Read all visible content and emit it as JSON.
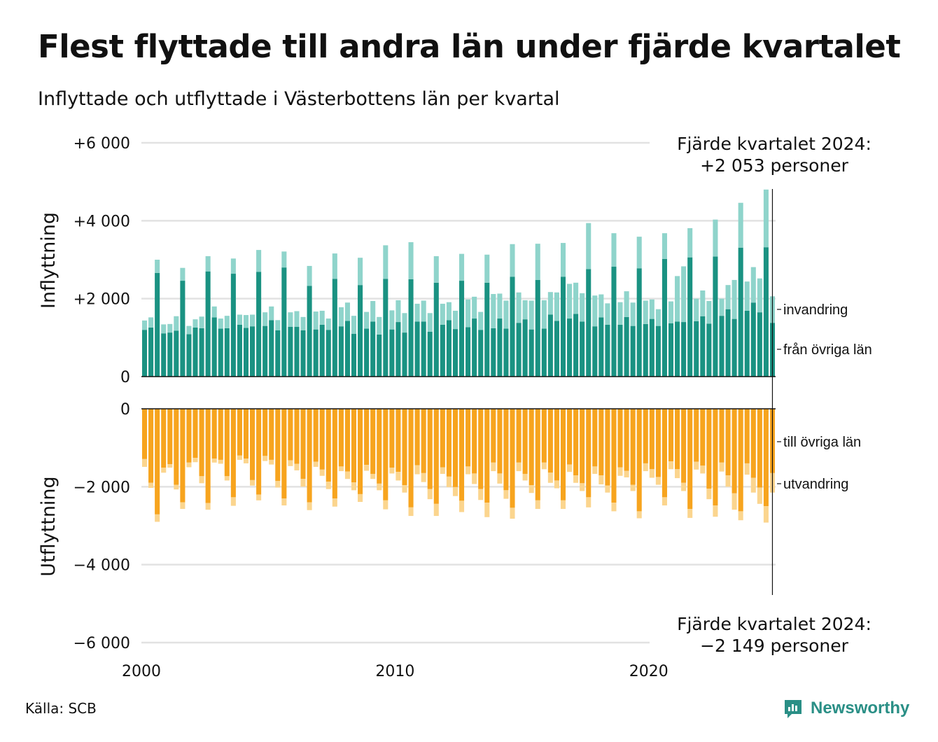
{
  "title": "Flest flyttade till andra län under fjärde kvartalet",
  "subtitle": "Inflyttade och utflyttade i Västerbottens län per kvartal",
  "source": "Källa: SCB",
  "brand": {
    "name": "Newsworthy",
    "color": "#2a8f86",
    "icon": "bar-chart-speech-bubble-icon"
  },
  "colors": {
    "in_domestic": "#1a9282",
    "in_immigration": "#8fd4cb",
    "out_domestic": "#f7a41e",
    "out_emigration": "#fbd58e",
    "grid": "#e2e2e2"
  },
  "chart_data": {
    "type": "bar",
    "x_ticks": [
      "2000",
      "2010",
      "2020"
    ],
    "quarters_start": "2000 Q1",
    "top": {
      "ylabel": "Inflyttning",
      "ylim": [
        0,
        6000
      ],
      "y_ticks": [
        {
          "value": 0,
          "label": "0"
        },
        {
          "value": 2000,
          "label": "+2 000"
        },
        {
          "value": 4000,
          "label": "+4 000"
        },
        {
          "value": 6000,
          "label": "+6 000"
        }
      ],
      "series": [
        {
          "name": "från övriga län",
          "values": [
            1200,
            1260,
            2660,
            1110,
            1130,
            1180,
            2460,
            1090,
            1260,
            1240,
            2700,
            1520,
            1230,
            1240,
            2640,
            1330,
            1250,
            1290,
            2690,
            1300,
            1450,
            1190,
            2800,
            1280,
            1280,
            1190,
            2330,
            1210,
            1330,
            1200,
            2510,
            1290,
            1430,
            1100,
            2350,
            1230,
            1410,
            1080,
            2510,
            1210,
            1400,
            1130,
            2500,
            1410,
            1410,
            1150,
            2410,
            1330,
            1450,
            1220,
            2460,
            1270,
            1490,
            1200,
            2410,
            1240,
            1490,
            1230,
            2560,
            1380,
            1470,
            1210,
            2480,
            1230,
            1590,
            1430,
            2560,
            1490,
            1610,
            1410,
            2760,
            1290,
            1520,
            1330,
            2820,
            1330,
            1530,
            1300,
            2780,
            1350,
            1480,
            1300,
            3020,
            1370,
            1410,
            1400,
            3060,
            1420,
            1550,
            1360,
            3080,
            1560,
            1730,
            1480,
            3310,
            1690,
            1900,
            1650,
            3320,
            1380
          ]
        },
        {
          "name": "invandring",
          "values": [
            240,
            260,
            340,
            230,
            220,
            370,
            330,
            210,
            210,
            300,
            390,
            280,
            260,
            320,
            390,
            260,
            330,
            300,
            560,
            350,
            350,
            260,
            410,
            370,
            400,
            340,
            510,
            460,
            360,
            290,
            650,
            490,
            470,
            460,
            700,
            430,
            530,
            450,
            860,
            490,
            560,
            500,
            950,
            460,
            540,
            480,
            680,
            540,
            460,
            470,
            690,
            710,
            560,
            460,
            720,
            880,
            640,
            720,
            840,
            780,
            490,
            740,
            930,
            730,
            580,
            730,
            870,
            890,
            800,
            730,
            1180,
            790,
            590,
            550,
            860,
            580,
            660,
            600,
            810,
            600,
            500,
            430,
            660,
            560,
            1170,
            1430,
            750,
            580,
            660,
            580,
            950,
            440,
            620,
            1000,
            1150,
            750,
            910,
            870,
            1480,
            680
          ]
        }
      ],
      "annotation": [
        "Fjärde kvartalet 2024:",
        "+2 053 personer"
      ]
    },
    "bottom": {
      "ylabel": "Utflyttning",
      "ylim": [
        -6000,
        0
      ],
      "y_ticks": [
        {
          "value": 0,
          "label": "0"
        },
        {
          "value": -2000,
          "label": "−2 000"
        },
        {
          "value": -4000,
          "label": "−4 000"
        },
        {
          "value": -6000,
          "label": "−6 000"
        }
      ],
      "series": [
        {
          "name": "till övriga län",
          "values": [
            -1290,
            -1900,
            -2710,
            -1510,
            -1420,
            -1950,
            -2400,
            -1380,
            -1260,
            -1730,
            -2420,
            -1280,
            -1310,
            -1730,
            -2270,
            -1200,
            -1280,
            -1830,
            -2200,
            -1210,
            -1310,
            -1850,
            -2300,
            -1320,
            -1410,
            -1800,
            -2400,
            -1360,
            -1560,
            -1870,
            -2300,
            -1480,
            -1610,
            -1890,
            -2190,
            -1440,
            -1670,
            -1920,
            -2350,
            -1510,
            -1620,
            -1960,
            -2530,
            -1450,
            -1650,
            -2060,
            -2440,
            -1500,
            -1740,
            -2010,
            -2360,
            -1480,
            -1660,
            -2060,
            -2410,
            -1380,
            -1660,
            -2090,
            -2540,
            -1380,
            -1670,
            -1960,
            -2350,
            -1380,
            -1640,
            -1840,
            -2350,
            -1430,
            -1710,
            -1910,
            -2270,
            -1480,
            -1710,
            -1970,
            -2410,
            -1500,
            -1590,
            -1950,
            -2630,
            -1400,
            -1550,
            -1750,
            -2270,
            -1350,
            -1550,
            -1900,
            -2570,
            -1360,
            -1460,
            -2050,
            -2480,
            -1380,
            -1710,
            -2170,
            -2630,
            -1400,
            -1770,
            -2020,
            -2500,
            -1650
          ]
        },
        {
          "name": "utvandring",
          "values": [
            -200,
            -130,
            -190,
            -130,
            -90,
            -120,
            -170,
            -120,
            -110,
            -180,
            -170,
            -100,
            -100,
            -110,
            -220,
            -110,
            -120,
            -140,
            -150,
            -130,
            -120,
            -170,
            -180,
            -150,
            -170,
            -200,
            -200,
            -130,
            -160,
            -190,
            -210,
            -120,
            -190,
            -200,
            -200,
            -150,
            -130,
            -170,
            -230,
            -150,
            -220,
            -190,
            -220,
            -230,
            -230,
            -260,
            -310,
            -170,
            -270,
            -230,
            -290,
            -200,
            -270,
            -280,
            -370,
            -220,
            -260,
            -220,
            -280,
            -220,
            -170,
            -200,
            -220,
            -170,
            -260,
            -200,
            -220,
            -190,
            -190,
            -200,
            -260,
            -190,
            -230,
            -180,
            -220,
            -220,
            -170,
            -160,
            -180,
            -200,
            -220,
            -200,
            -210,
            -200,
            -230,
            -210,
            -230,
            -200,
            -200,
            -270,
            -290,
            -230,
            -290,
            -420,
            -230,
            -290,
            -380,
            -420,
            -420,
            -500
          ]
        }
      ],
      "annotation": [
        "Fjärde kvartalet 2024:",
        "−2 149 personer"
      ]
    }
  }
}
